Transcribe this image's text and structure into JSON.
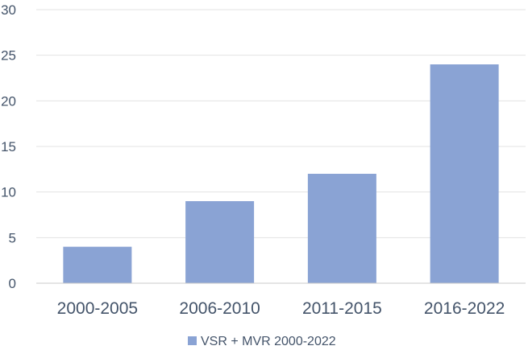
{
  "chart_data": {
    "type": "bar",
    "title": "",
    "xlabel": "",
    "ylabel": "",
    "categories": [
      "2000-2005",
      "2006-2010",
      "2011-2015",
      "2016-2022"
    ],
    "series": [
      {
        "name": "VSR + MVR 2000-2022",
        "values": [
          4,
          9,
          12,
          24
        ],
        "color": "#8aa3d4"
      }
    ],
    "ylim": [
      0,
      30
    ],
    "yticks": [
      0,
      5,
      10,
      15,
      20,
      25,
      30
    ],
    "grid": true,
    "legend": "bottom"
  }
}
